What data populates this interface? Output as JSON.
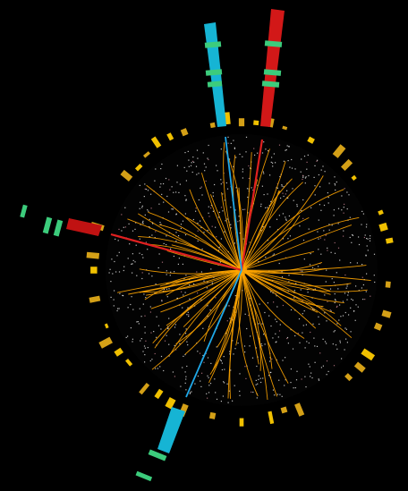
{
  "display": {
    "background": "#000000",
    "colors": {
      "track": "#ffa500",
      "hit": "#ffffff",
      "calorimeter_inner": "#f0c000",
      "calorimeter_outer": "#d4a017",
      "tower_red": "#d21818",
      "tower_cyan": "#16b4d4",
      "muon_chamber": "#3ccc7c"
    },
    "objects": [
      {
        "name": "red-tower-top",
        "color": "tower_red"
      },
      {
        "name": "cyan-tower-top",
        "color": "tower_cyan"
      },
      {
        "name": "red-tower-left",
        "color": "tower_red"
      },
      {
        "name": "cyan-tower-bottom",
        "color": "tower_cyan"
      }
    ]
  }
}
